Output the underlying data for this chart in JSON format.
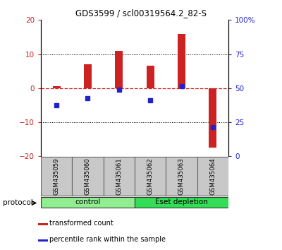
{
  "title": "GDS3599 / scl00319564.2_82-S",
  "samples": [
    "GSM435059",
    "GSM435060",
    "GSM435061",
    "GSM435062",
    "GSM435063",
    "GSM435064"
  ],
  "red_bars": [
    0.5,
    7.0,
    11.0,
    6.5,
    16.0,
    -17.5
  ],
  "blue_dots": [
    -5.0,
    -3.0,
    -0.5,
    -3.5,
    0.5,
    -11.5
  ],
  "ylim_left": [
    -20,
    20
  ],
  "ylim_right": [
    0,
    100
  ],
  "yticks_left": [
    -20,
    -10,
    0,
    10,
    20
  ],
  "yticks_right": [
    0,
    25,
    50,
    75,
    100
  ],
  "ytick_labels_right": [
    "0",
    "25",
    "50",
    "75",
    "100%"
  ],
  "protocol_groups": [
    {
      "label": "control",
      "color": "#90EE90"
    },
    {
      "label": "Eset depletion",
      "color": "#33DD55"
    }
  ],
  "bar_color": "#CC2222",
  "dot_color": "#2222CC",
  "zero_line_color": "#CC2222",
  "tick_label_color_left": "#CC2222",
  "tick_label_color_right": "#2222CC",
  "legend_red_label": "transformed count",
  "legend_blue_label": "percentile rank within the sample",
  "protocol_label": "protocol",
  "sample_box_color": "#C8C8C8",
  "sample_box_edge": "#666666",
  "bar_width": 0.25
}
